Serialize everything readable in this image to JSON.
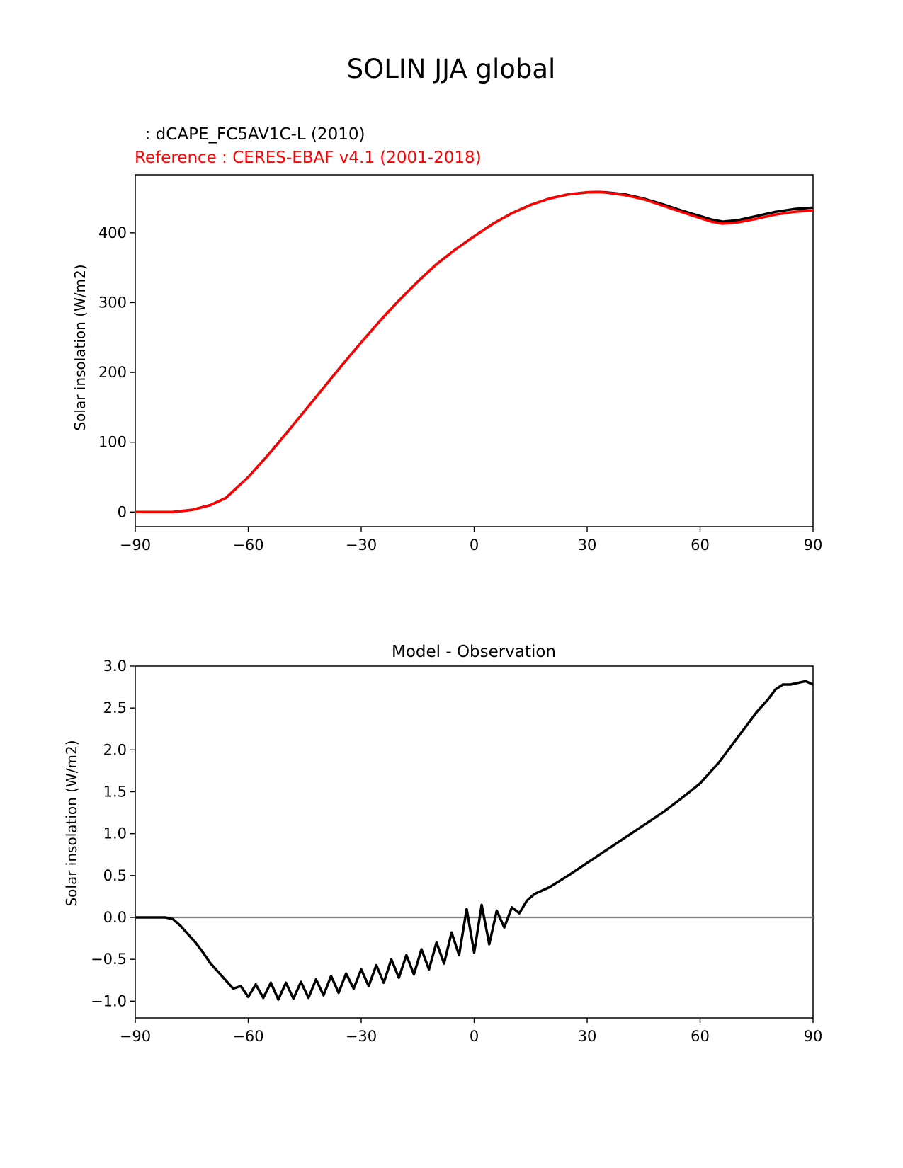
{
  "figure_title": "SOLIN JJA global",
  "chart_data": [
    {
      "type": "line",
      "test_label": "  : dCAPE_FC5AV1C-L (2010)",
      "ref_label": "Reference : CERES-EBAF v4.1 (2001-2018)",
      "title": "",
      "xlabel": "",
      "ylabel": "Solar insolation (W/m2)",
      "xlim": [
        -90,
        90
      ],
      "ylim": [
        -21,
        483
      ],
      "xticks": [
        -90,
        -60,
        -30,
        0,
        30,
        60,
        90
      ],
      "xtick_labels": [
        "−90",
        "−60",
        "−30",
        "0",
        "30",
        "60",
        "90"
      ],
      "yticks": [
        0,
        100,
        200,
        300,
        400
      ],
      "ytick_labels": [
        "0",
        "100",
        "200",
        "300",
        "400"
      ],
      "colors": {
        "test": "#000000",
        "ref": "#ff0000"
      },
      "series": [
        {
          "name": "test",
          "x": [
            -90,
            -85,
            -80,
            -75,
            -70,
            -66,
            -60,
            -55,
            -50,
            -45,
            -40,
            -35,
            -30,
            -25,
            -20,
            -15,
            -10,
            -5,
            0,
            5,
            10,
            15,
            20,
            25,
            30,
            33,
            35,
            40,
            45,
            50,
            55,
            60,
            63,
            66,
            67,
            70,
            75,
            80,
            85,
            90
          ],
          "values": [
            0,
            0,
            0,
            3,
            10,
            20,
            50,
            80,
            112,
            145,
            178,
            211,
            243,
            274,
            303,
            330,
            355,
            376,
            395,
            413,
            428,
            440,
            449,
            455,
            458,
            458.5,
            458,
            455,
            449,
            441,
            432,
            424,
            419,
            416,
            416.5,
            418,
            424,
            430,
            434,
            436
          ]
        },
        {
          "name": "ref",
          "x": [
            -90,
            -85,
            -80,
            -75,
            -70,
            -66,
            -60,
            -55,
            -50,
            -45,
            -40,
            -35,
            -30,
            -25,
            -20,
            -15,
            -10,
            -5,
            0,
            5,
            10,
            15,
            20,
            25,
            30,
            33,
            35,
            40,
            45,
            50,
            55,
            60,
            63,
            66,
            67,
            70,
            75,
            80,
            85,
            90
          ],
          "values": [
            0,
            0,
            0,
            3,
            10,
            20,
            50,
            80,
            112,
            145,
            178,
            211,
            243,
            274,
            303,
            330,
            355,
            376,
            395,
            413,
            428,
            440,
            449,
            455,
            458,
            458.3,
            457.5,
            454,
            448,
            439,
            430,
            421,
            416,
            413,
            413.5,
            415,
            420,
            426,
            430,
            432
          ]
        }
      ]
    },
    {
      "type": "line",
      "title": "Model - Observation",
      "xlabel": "",
      "ylabel": "Solar insolation (W/m2)",
      "xlim": [
        -90,
        90
      ],
      "ylim": [
        -1.2,
        3.0
      ],
      "xticks": [
        -90,
        -60,
        -30,
        0,
        30,
        60,
        90
      ],
      "xtick_labels": [
        "−90",
        "−60",
        "−30",
        "0",
        "30",
        "60",
        "90"
      ],
      "yticks": [
        -1.0,
        -0.5,
        0.0,
        0.5,
        1.0,
        1.5,
        2.0,
        2.5,
        3.0
      ],
      "ytick_labels": [
        "−1.0",
        "−0.5",
        "0.0",
        "0.5",
        "1.0",
        "1.5",
        "2.0",
        "2.5",
        "3.0"
      ],
      "zero_line": 0,
      "colors": {
        "diff": "#000000",
        "zero": "#808080"
      },
      "series": [
        {
          "name": "diff",
          "x": [
            -90,
            -88,
            -86,
            -84,
            -82,
            -80,
            -78,
            -76,
            -74,
            -72,
            -70,
            -68,
            -66,
            -64,
            -62,
            -60,
            -58,
            -56,
            -54,
            -52,
            -50,
            -48,
            -46,
            -44,
            -42,
            -40,
            -38,
            -36,
            -34,
            -32,
            -30,
            -28,
            -26,
            -24,
            -22,
            -20,
            -18,
            -16,
            -14,
            -12,
            -10,
            -8,
            -6,
            -4,
            -2,
            0,
            2,
            4,
            6,
            8,
            10,
            12,
            14,
            16,
            18,
            20,
            25,
            30,
            35,
            40,
            45,
            50,
            55,
            60,
            65,
            70,
            75,
            78,
            80,
            82,
            84,
            86,
            88,
            90
          ],
          "values": [
            0,
            0,
            0,
            0,
            0,
            -0.02,
            -0.1,
            -0.2,
            -0.3,
            -0.42,
            -0.55,
            -0.65,
            -0.75,
            -0.85,
            -0.82,
            -0.95,
            -0.8,
            -0.96,
            -0.78,
            -0.98,
            -0.78,
            -0.97,
            -0.77,
            -0.96,
            -0.74,
            -0.93,
            -0.7,
            -0.9,
            -0.67,
            -0.85,
            -0.62,
            -0.82,
            -0.57,
            -0.78,
            -0.5,
            -0.72,
            -0.45,
            -0.68,
            -0.38,
            -0.62,
            -0.3,
            -0.55,
            -0.18,
            -0.45,
            0.1,
            -0.42,
            0.15,
            -0.32,
            0.08,
            -0.12,
            0.12,
            0.05,
            0.2,
            0.28,
            0.32,
            0.36,
            0.5,
            0.65,
            0.8,
            0.95,
            1.1,
            1.25,
            1.42,
            1.6,
            1.85,
            2.15,
            2.45,
            2.6,
            2.72,
            2.78,
            2.78,
            2.8,
            2.82,
            2.78
          ]
        }
      ]
    }
  ]
}
